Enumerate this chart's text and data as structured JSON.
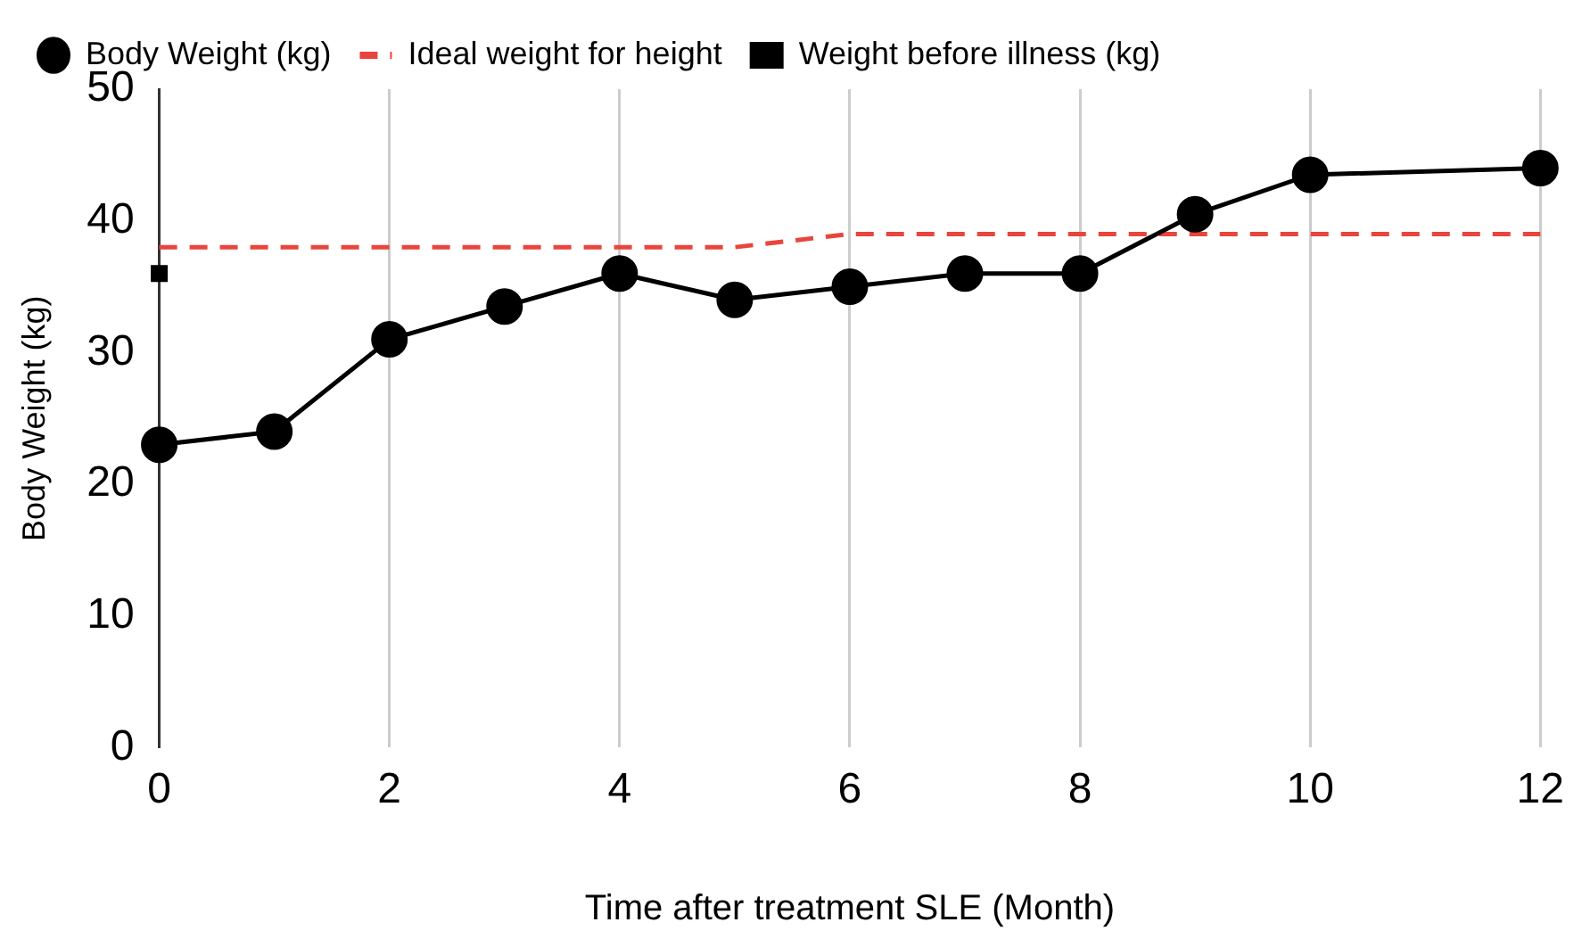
{
  "chart_data": {
    "type": "line",
    "xlabel": "Time after treatment SLE (Month)",
    "ylabel": "Body Weight (kg)",
    "xlim": [
      0,
      12
    ],
    "xticks": [
      0,
      2,
      4,
      6,
      8,
      10,
      12
    ],
    "ylim": [
      0,
      50
    ],
    "yticks": [
      0,
      10,
      20,
      30,
      40,
      50
    ],
    "grid": "x",
    "legend": "top",
    "series": [
      {
        "name": "Body Weight (kg)",
        "type": "line",
        "color": "#000000",
        "marker": "circle",
        "line_style": "solid",
        "x": [
          0,
          1,
          2,
          3,
          4,
          5,
          6,
          7,
          8,
          9,
          10,
          12
        ],
        "values": [
          23,
          24,
          31,
          33.5,
          36,
          34,
          35,
          36,
          36,
          40.5,
          43.5,
          44
        ]
      },
      {
        "name": "Ideal weight for height",
        "type": "line",
        "color": "#e8453c",
        "marker": "none",
        "line_style": "dashed",
        "x": [
          0,
          5,
          6,
          12
        ],
        "values": [
          38,
          38,
          39,
          39
        ]
      },
      {
        "name": "Weight before illness (kg)",
        "type": "scatter",
        "color": "#000000",
        "marker": "square",
        "x": [
          0
        ],
        "values": [
          36
        ]
      }
    ]
  }
}
